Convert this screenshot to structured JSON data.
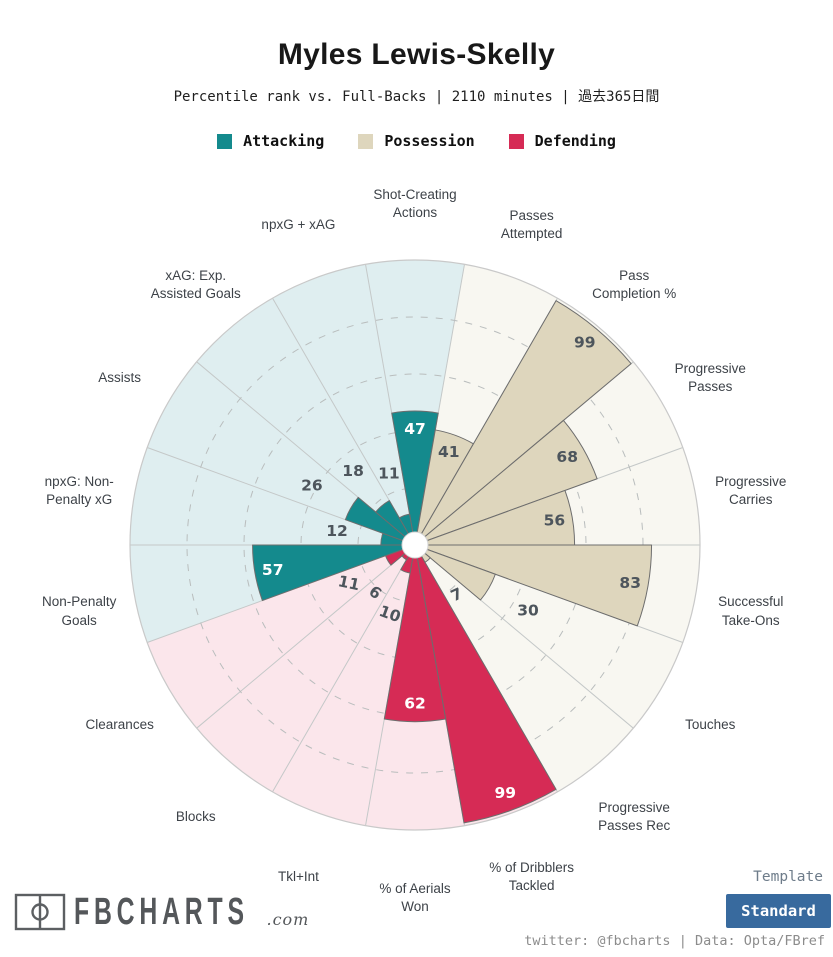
{
  "header": {
    "title": "Myles Lewis-Skelly",
    "subtitle": "Percentile rank vs. Full-Backs | 2110 minutes | 過去365日間"
  },
  "legend": [
    {
      "label": "Attacking",
      "group": "attacking"
    },
    {
      "label": "Possession",
      "group": "possession"
    },
    {
      "label": "Defending",
      "group": "defending"
    }
  ],
  "chart_data": {
    "type": "pie",
    "subtype": "pizza-percentile-polar-bars",
    "units": "percentile rank 0-100",
    "rings": [
      20,
      40,
      60,
      80,
      100
    ],
    "slice_angle_deg": 20,
    "first_slice": "Shot-Creating Actions centered at top, clockwise",
    "groups": {
      "attacking": {
        "label": "Attacking",
        "fill": "#148a8d",
        "bg": "#dfeef0"
      },
      "possession": {
        "label": "Possession",
        "fill": "#ded6bd",
        "bg": "#f8f7f1"
      },
      "defending": {
        "label": "Defending",
        "fill": "#d62b55",
        "bg": "#fbe6eb"
      }
    },
    "categories": [
      {
        "label": "Shot-Creating\nActions",
        "value": 47,
        "group": "attacking"
      },
      {
        "label": "Passes\nAttempted",
        "value": 41,
        "group": "possession"
      },
      {
        "label": "Pass\nCompletion %",
        "value": 99,
        "group": "possession"
      },
      {
        "label": "Progressive\nPasses",
        "value": 68,
        "group": "possession"
      },
      {
        "label": "Progressive\nCarries",
        "value": 56,
        "group": "possession"
      },
      {
        "label": "Successful\nTake-Ons",
        "value": 83,
        "group": "possession"
      },
      {
        "label": "Touches",
        "value": 30,
        "group": "possession"
      },
      {
        "label": "Progressive\nPasses Rec",
        "value": 7,
        "group": "possession"
      },
      {
        "label": "% of Dribblers\nTackled",
        "value": 99,
        "group": "defending"
      },
      {
        "label": "% of Aerials\nWon",
        "value": 62,
        "group": "defending"
      },
      {
        "label": "Tkl+Int",
        "value": 10,
        "group": "defending"
      },
      {
        "label": "Blocks",
        "value": 6,
        "group": "defending"
      },
      {
        "label": "Clearances",
        "value": 11,
        "group": "defending"
      },
      {
        "label": "Non-Penalty\nGoals",
        "value": 57,
        "group": "attacking"
      },
      {
        "label": "npxG: Non-\nPenalty xG",
        "value": 12,
        "group": "attacking"
      },
      {
        "label": "Assists",
        "value": 26,
        "group": "attacking"
      },
      {
        "label": "xAG: Exp.\nAssisted Goals",
        "value": 18,
        "group": "attacking"
      },
      {
        "label": "npxG + xAG",
        "value": 11,
        "group": "attacking"
      }
    ],
    "value_text_dark": "#4d555c",
    "value_text_light": "#ffffff"
  },
  "footer": {
    "brand": "FBCHARTS",
    "brand_suffix": ".com",
    "template_label": "Template",
    "template_value": "Standard",
    "template_button_color": "#386a9e",
    "credit": "twitter: @fbcharts | Data: Opta/FBref"
  }
}
